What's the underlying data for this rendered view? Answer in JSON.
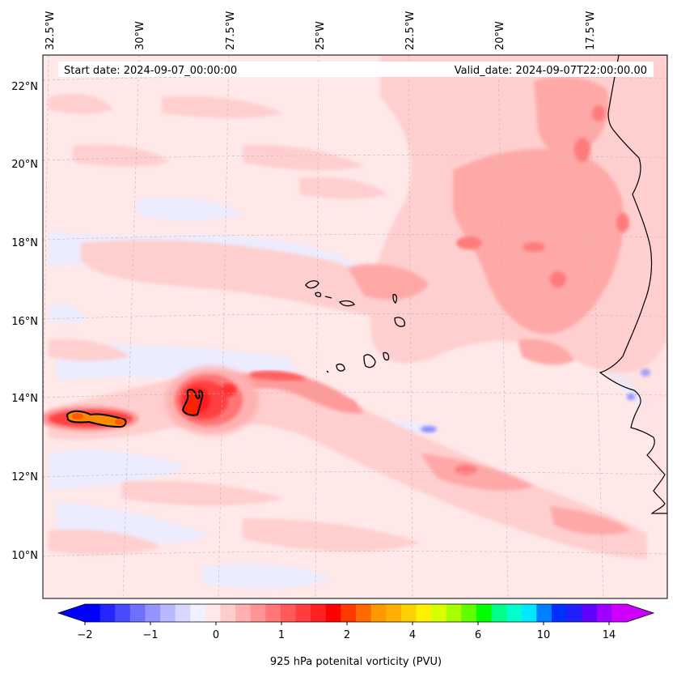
{
  "map": {
    "start_date_text": "Start date: 2024-09-07_00:00:00",
    "valid_date_text": "Valid_date: 2024-09-07T22:00:00.00",
    "lon_labels": [
      "32.5°W",
      "30°W",
      "27.5°W",
      "25°W",
      "22.5°W",
      "20°W",
      "17.5°W"
    ],
    "lat_labels": [
      "22°N",
      "20°N",
      "18°N",
      "16°N",
      "14°N",
      "12°N",
      "10°N"
    ],
    "extent": {
      "lon_min": -33.0,
      "lon_max": -15.5,
      "lat_min": 9.0,
      "lat_max": 22.7
    },
    "field_description_colors": {
      "background": "#ffe8e8",
      "weak_positive": "#ffd0d0",
      "moderate_positive": "#ff9e9e",
      "strong_positive": "#ff3030",
      "negative": "#ececff",
      "vortex_core": "#ff9900",
      "coastline": "#000000"
    }
  },
  "colorbar": {
    "label": "925 hPa potenital vorticity (PVU)",
    "tick_labels": [
      "−2",
      "−1",
      "0",
      "1",
      "2",
      "4",
      "6",
      "10",
      "14"
    ],
    "colors": [
      "#0000ff",
      "#2525ff",
      "#4a4aff",
      "#7070ff",
      "#9494ff",
      "#b8b8ff",
      "#d8d8ff",
      "#f0f0ff",
      "#ffe8e8",
      "#ffcccc",
      "#ffb0b0",
      "#ff9494",
      "#ff7777",
      "#ff5a5a",
      "#ff3d3d",
      "#ff2020",
      "#ff0000",
      "#ff3a00",
      "#ff6a00",
      "#ff9900",
      "#ffb000",
      "#ffd000",
      "#fff000",
      "#d8ff00",
      "#a8ff00",
      "#60ff00",
      "#00ff00",
      "#00ff88",
      "#00ffcc",
      "#00e8ff",
      "#0080ff",
      "#0030ff",
      "#2020ff",
      "#6000ff",
      "#a000ff",
      "#d000ff"
    ],
    "under_color": "#0000ff",
    "over_color": "#cc00ff"
  }
}
